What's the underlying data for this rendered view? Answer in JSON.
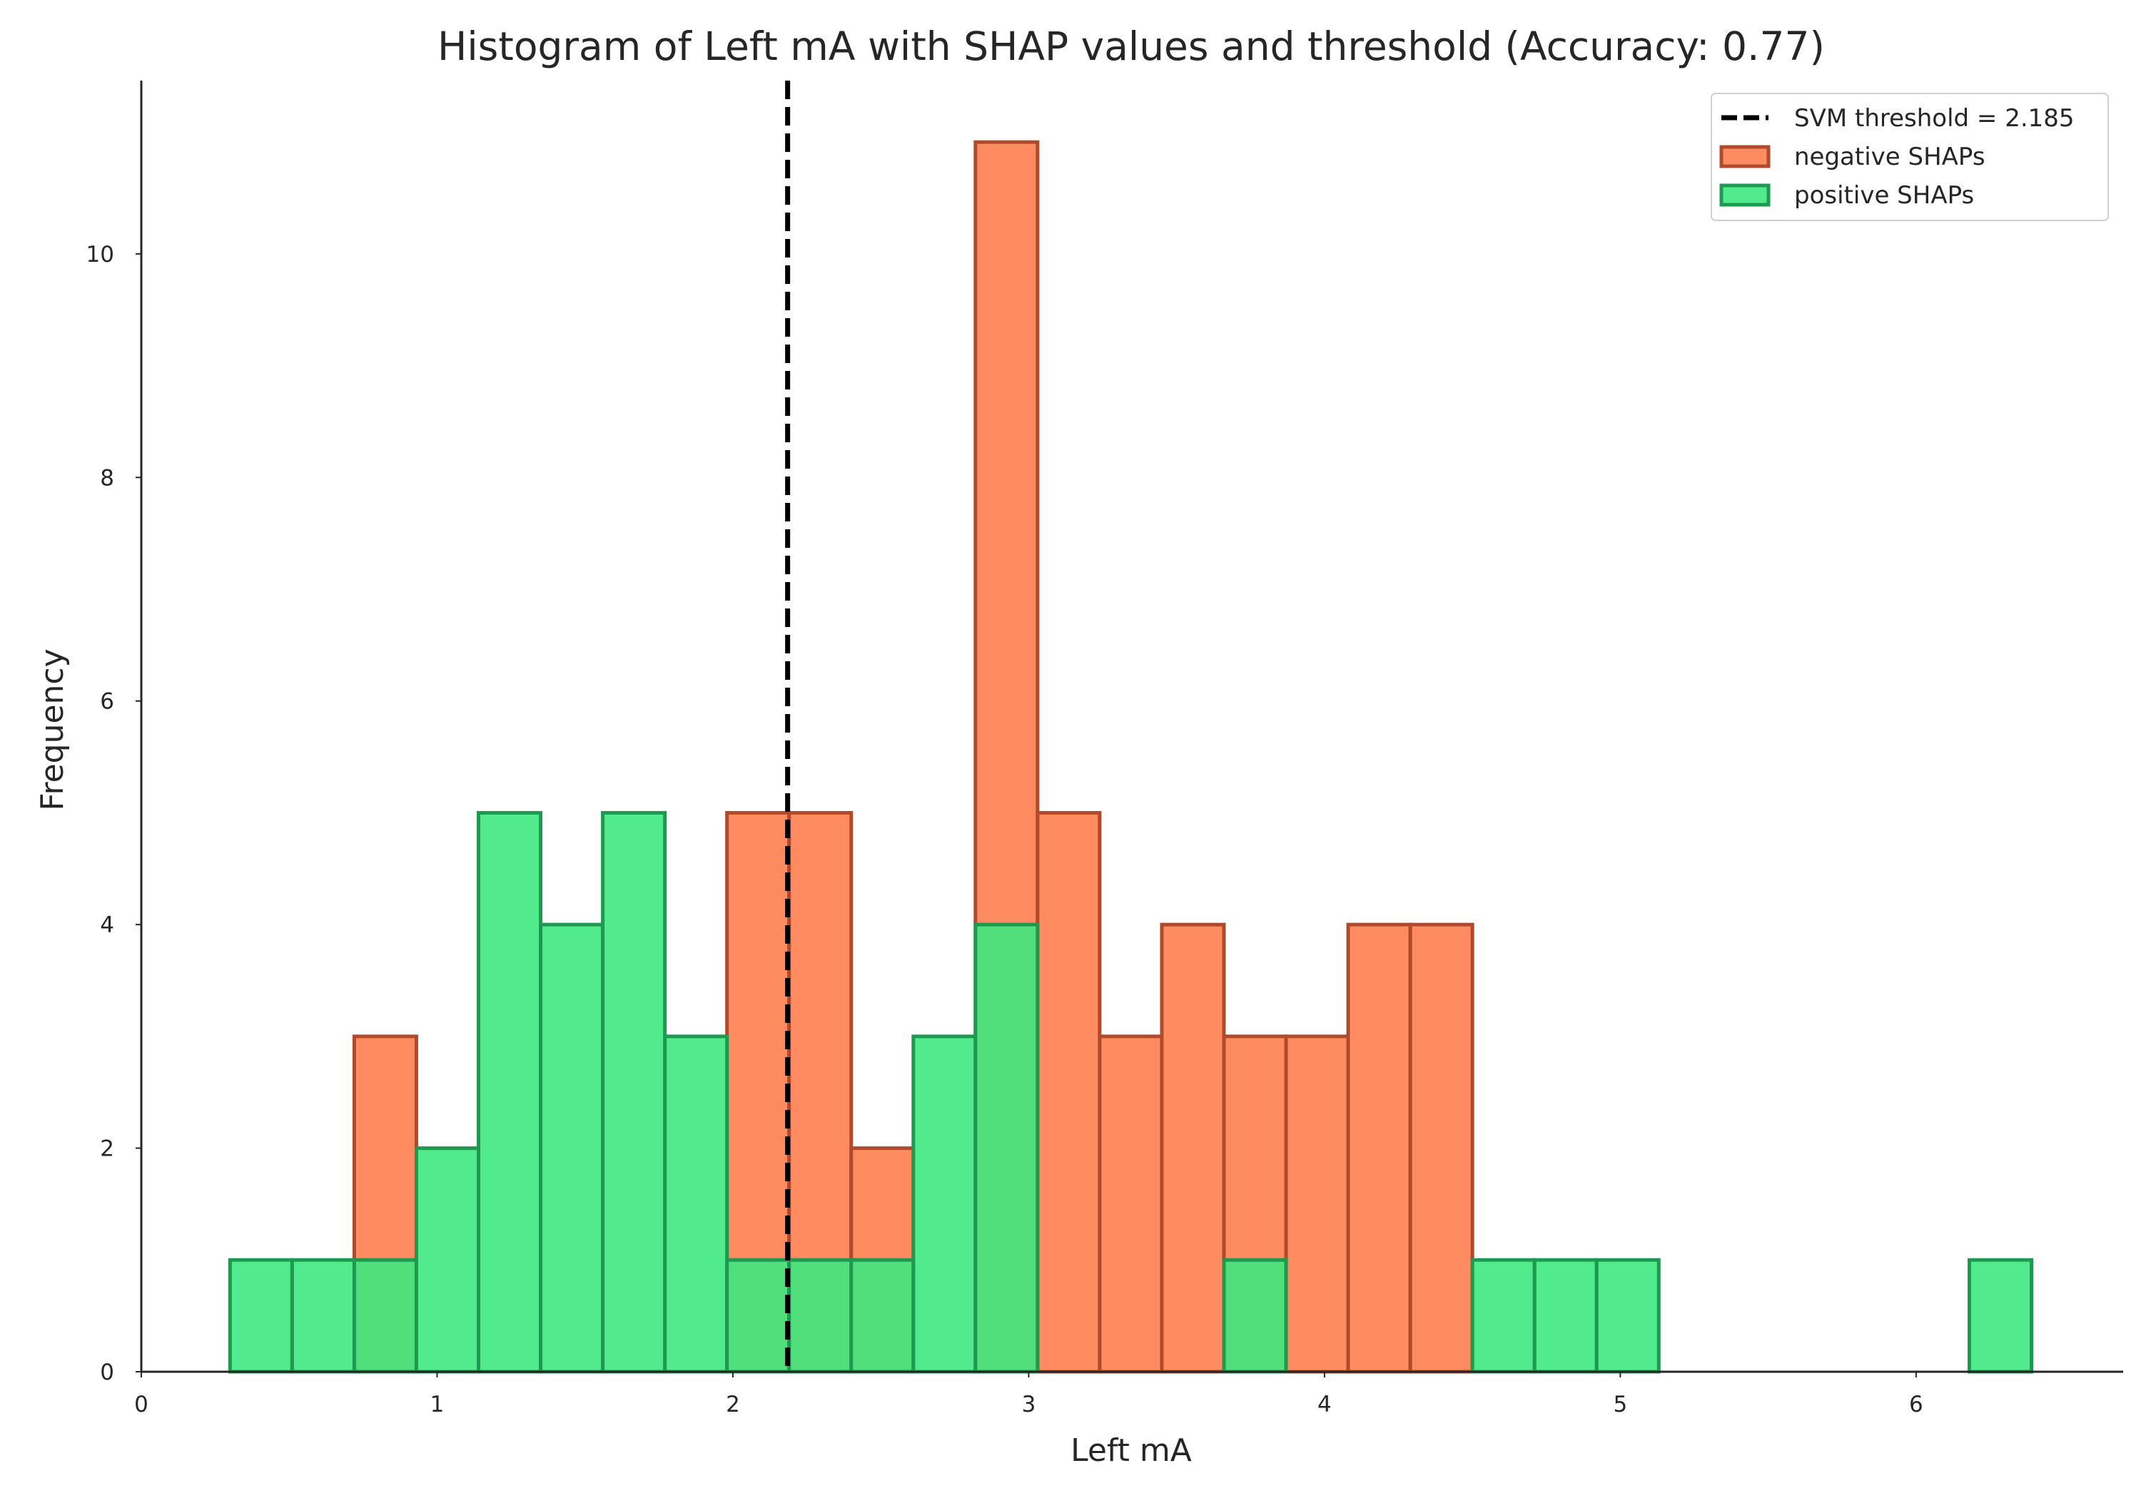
{
  "chart_data": {
    "type": "bar",
    "title": "Histogram of Left mA with SHAP values and threshold (Accuracy: 0.77)",
    "xlabel": "Left mA",
    "ylabel": "Frequency",
    "xlim": [
      0,
      6.7
    ],
    "ylim": [
      0,
      11.55
    ],
    "x_ticks": [
      0,
      1,
      2,
      3,
      4,
      5,
      6
    ],
    "y_ticks": [
      0,
      2,
      4,
      6,
      8,
      10
    ],
    "grid": false,
    "legend_position": "top-right",
    "bin_edges": [
      0.3,
      0.51,
      0.72,
      0.93,
      1.14,
      1.35,
      1.56,
      1.77,
      1.98,
      2.19,
      2.4,
      2.61,
      2.82,
      3.03,
      3.24,
      3.45,
      3.66,
      3.87,
      4.08,
      4.29,
      4.5,
      4.71,
      4.92,
      5.13,
      5.34,
      5.55,
      5.76,
      5.97,
      6.18,
      6.39
    ],
    "series": [
      {
        "name": "negative SHAPs",
        "color": "#ff7f50",
        "edge_color": "#b04a2c",
        "values": [
          0,
          0,
          3,
          0,
          0,
          0,
          0,
          0,
          5,
          5,
          2,
          0,
          11,
          5,
          3,
          4,
          3,
          3,
          4,
          4,
          0,
          0,
          0,
          0,
          0,
          0,
          0,
          0,
          0
        ]
      },
      {
        "name": "positive SHAPs",
        "color": "#3ee87f",
        "edge_color": "#1f9950",
        "values": [
          1,
          1,
          1,
          2,
          5,
          4,
          5,
          3,
          1,
          1,
          1,
          3,
          4,
          0,
          0,
          0,
          1,
          0,
          0,
          0,
          1,
          1,
          1,
          0,
          0,
          0,
          0,
          0,
          1
        ]
      }
    ],
    "threshold": {
      "label": "SVM threshold = 2.185",
      "value": 2.185,
      "color": "#000000"
    }
  }
}
